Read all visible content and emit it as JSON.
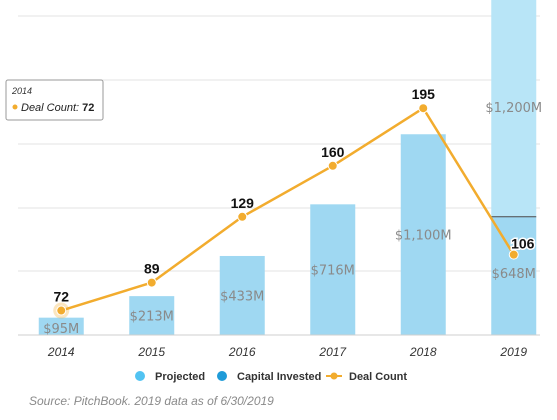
{
  "chart_data": {
    "type": "bar",
    "categories": [
      "2014",
      "2015",
      "2016",
      "2017",
      "2018",
      "2019"
    ],
    "series": [
      {
        "name": "Capital Invested",
        "kind": "bar",
        "color": "#9fd8f2",
        "values": [
          95,
          213,
          433,
          716,
          1100,
          648
        ],
        "labels": [
          "$95M",
          "$213M",
          "$433M",
          "$716M",
          "$1,100M",
          "$648M"
        ]
      },
      {
        "name": "Projected",
        "kind": "bar-stacked",
        "color": "#b8e5f7",
        "values": [
          null,
          null,
          null,
          null,
          null,
          1200
        ],
        "labels": [
          "",
          "",
          "",
          "",
          "",
          "$1,200M"
        ]
      },
      {
        "name": "Deal Count",
        "kind": "line",
        "color": "#f2ac2e",
        "values": [
          72,
          89,
          129,
          160,
          195,
          106
        ],
        "labels": [
          "72",
          "89",
          "129",
          "160",
          "195",
          "106"
        ]
      }
    ],
    "legend": {
      "position": "bottom",
      "items": [
        {
          "label": "Projected",
          "color": "#52c3f2",
          "marker": "circle"
        },
        {
          "label": "Capital Invested",
          "color": "#1f9bd8",
          "marker": "circle"
        },
        {
          "label": "Deal Count",
          "color": "#f2ac2e",
          "marker": "line-dot"
        }
      ]
    },
    "tooltip": {
      "year": "2014",
      "series": "Deal Count",
      "value": "72"
    },
    "grid": true
  },
  "source_note": "Source: PitchBook. 2019 data as of 6/30/2019"
}
